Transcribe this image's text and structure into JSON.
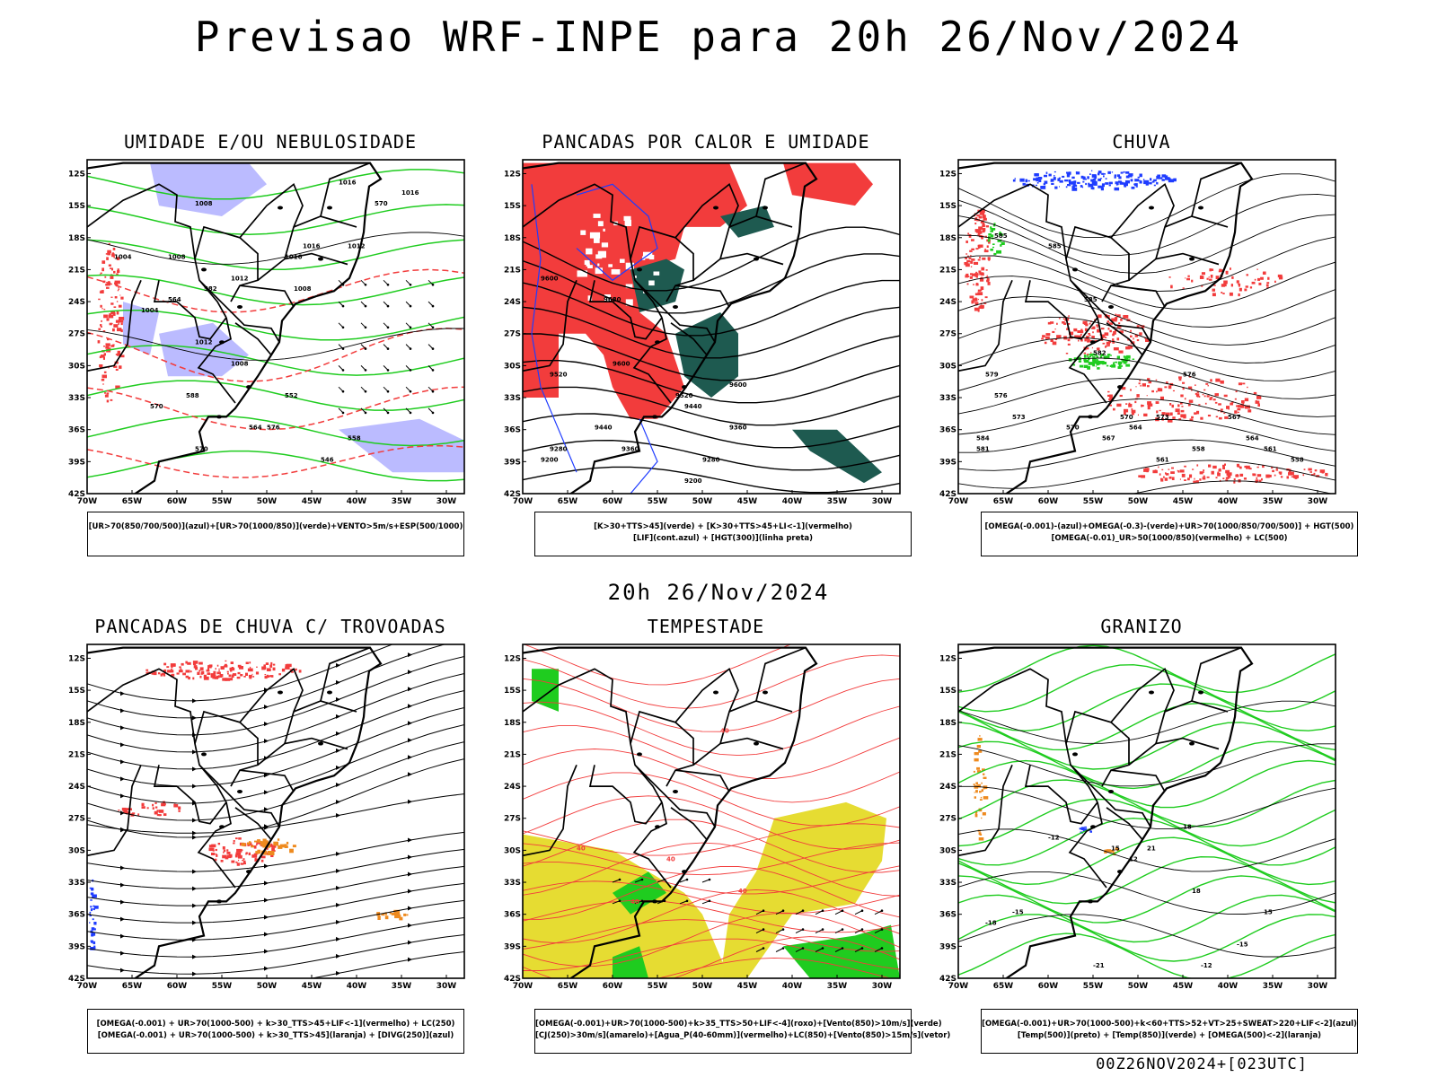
{
  "header": {
    "title": "Previsao WRF-INPE  para 20h 26/Nov/2024",
    "middle_date": "20h 26/Nov/2024",
    "footer_stamp": "00Z26NOV2024+[023UTC]"
  },
  "colors": {
    "red": "#f23c3c",
    "green": "#1fcc1f",
    "blue": "#1f3cff",
    "lavender": "#b4b4ff",
    "dark_teal": "#1e5a50",
    "yellow": "#e6dc32",
    "orange": "#ee8a1f",
    "black": "#000000"
  },
  "axes": {
    "lat_labels": [
      "12S",
      "15S",
      "18S",
      "21S",
      "24S",
      "27S",
      "30S",
      "33S",
      "36S",
      "39S",
      "42S"
    ],
    "lon_labels": [
      "70W",
      "65W",
      "60W",
      "55W",
      "50W",
      "45W",
      "40W",
      "35W",
      "30W"
    ]
  },
  "chart_data": [
    {
      "type": "map",
      "title": "UMIDADE E/OU NEBULOSIDADE",
      "legend": [
        "[UR>70(850/700/500)](azul)+[UR>70(1000/850)](verde)+VENTO>5m/s+ESP(500/1000)"
      ],
      "contour_labels": [
        "1016",
        "1008",
        "1004",
        "1008",
        "1012",
        "1016",
        "1016",
        "1012",
        "1008",
        "1004",
        "1016",
        "576",
        "570",
        "582",
        "564",
        "588",
        "570",
        "552",
        "546",
        "558",
        "564",
        "570",
        "1012",
        "1008"
      ]
    },
    {
      "type": "map",
      "title": "PANCADAS POR CALOR E UMIDADE",
      "legend": [
        "[K>30+TTS>45](verde) + [K>30+TTS>45+LI<-1](vermelho)",
        "[LIF](cont.azul) + [HGT(300)](linha preta)"
      ],
      "contour_labels": [
        "9600",
        "9680",
        "9600",
        "9520",
        "9440",
        "9360",
        "9280",
        "9200",
        "9440",
        "9360",
        "9600",
        "9520",
        "9280",
        "9200"
      ]
    },
    {
      "type": "map",
      "title": "CHUVA",
      "legend": [
        "[OMEGA(-0.001)-(azul)+OMEGA(-0.3)-(verde)+UR>70(1000/850/700/500)] + HGT(500)",
        "[OMEGA(-0.01)_UR>50(1000/850)(vermelho) + LC(500)"
      ],
      "contour_labels": [
        "585",
        "585",
        "585",
        "582",
        "579",
        "576",
        "573",
        "570",
        "567",
        "564",
        "561",
        "558",
        "576",
        "573",
        "570",
        "567",
        "564",
        "561",
        "558",
        "584",
        "581"
      ]
    },
    {
      "type": "map",
      "title": "PANCADAS DE CHUVA C/ TROVOADAS",
      "legend": [
        "[OMEGA(-0.001) + UR>70(1000-500) + k>30_TTS>45+LIF<-1](vermelho) + LC(250)",
        "[OMEGA(-0.001) + UR>70(1000-500) + k>30_TTS>45](laranja) + [DIVG(250)](azul)"
      ],
      "contour_labels": []
    },
    {
      "type": "map",
      "title": "TEMPESTADE",
      "legend": [
        "[OMEGA(-0.001)+UR>70(1000-500)+k>35_TTS>50+LIF<-4](roxo)+[Vento(850)>10m/s](verde)",
        "[CJ(250)>30m/s](amarelo)+[Agua_P(40-60mm)](vermelho)+LC(850)+[Vento(850)>15m/s](vetor)"
      ],
      "contour_labels": [
        "40",
        "40",
        "40",
        "40",
        "40"
      ]
    },
    {
      "type": "map",
      "title": "GRANIZO",
      "legend": [
        "[OMEGA(-0.001)+UR>70(1000-500)+k<60+TTS>52+VT>25+SWEAT>220+LIF<-2](azul)",
        "[Temp(500)](preto) + [Temp(850)](verde) + [OMEGA(500)<-2](laranja)"
      ],
      "contour_labels": [
        "-12",
        "-15",
        "-18",
        "-21",
        "-12",
        "-15",
        "15",
        "18",
        "21",
        "12",
        "15",
        "18"
      ]
    }
  ]
}
